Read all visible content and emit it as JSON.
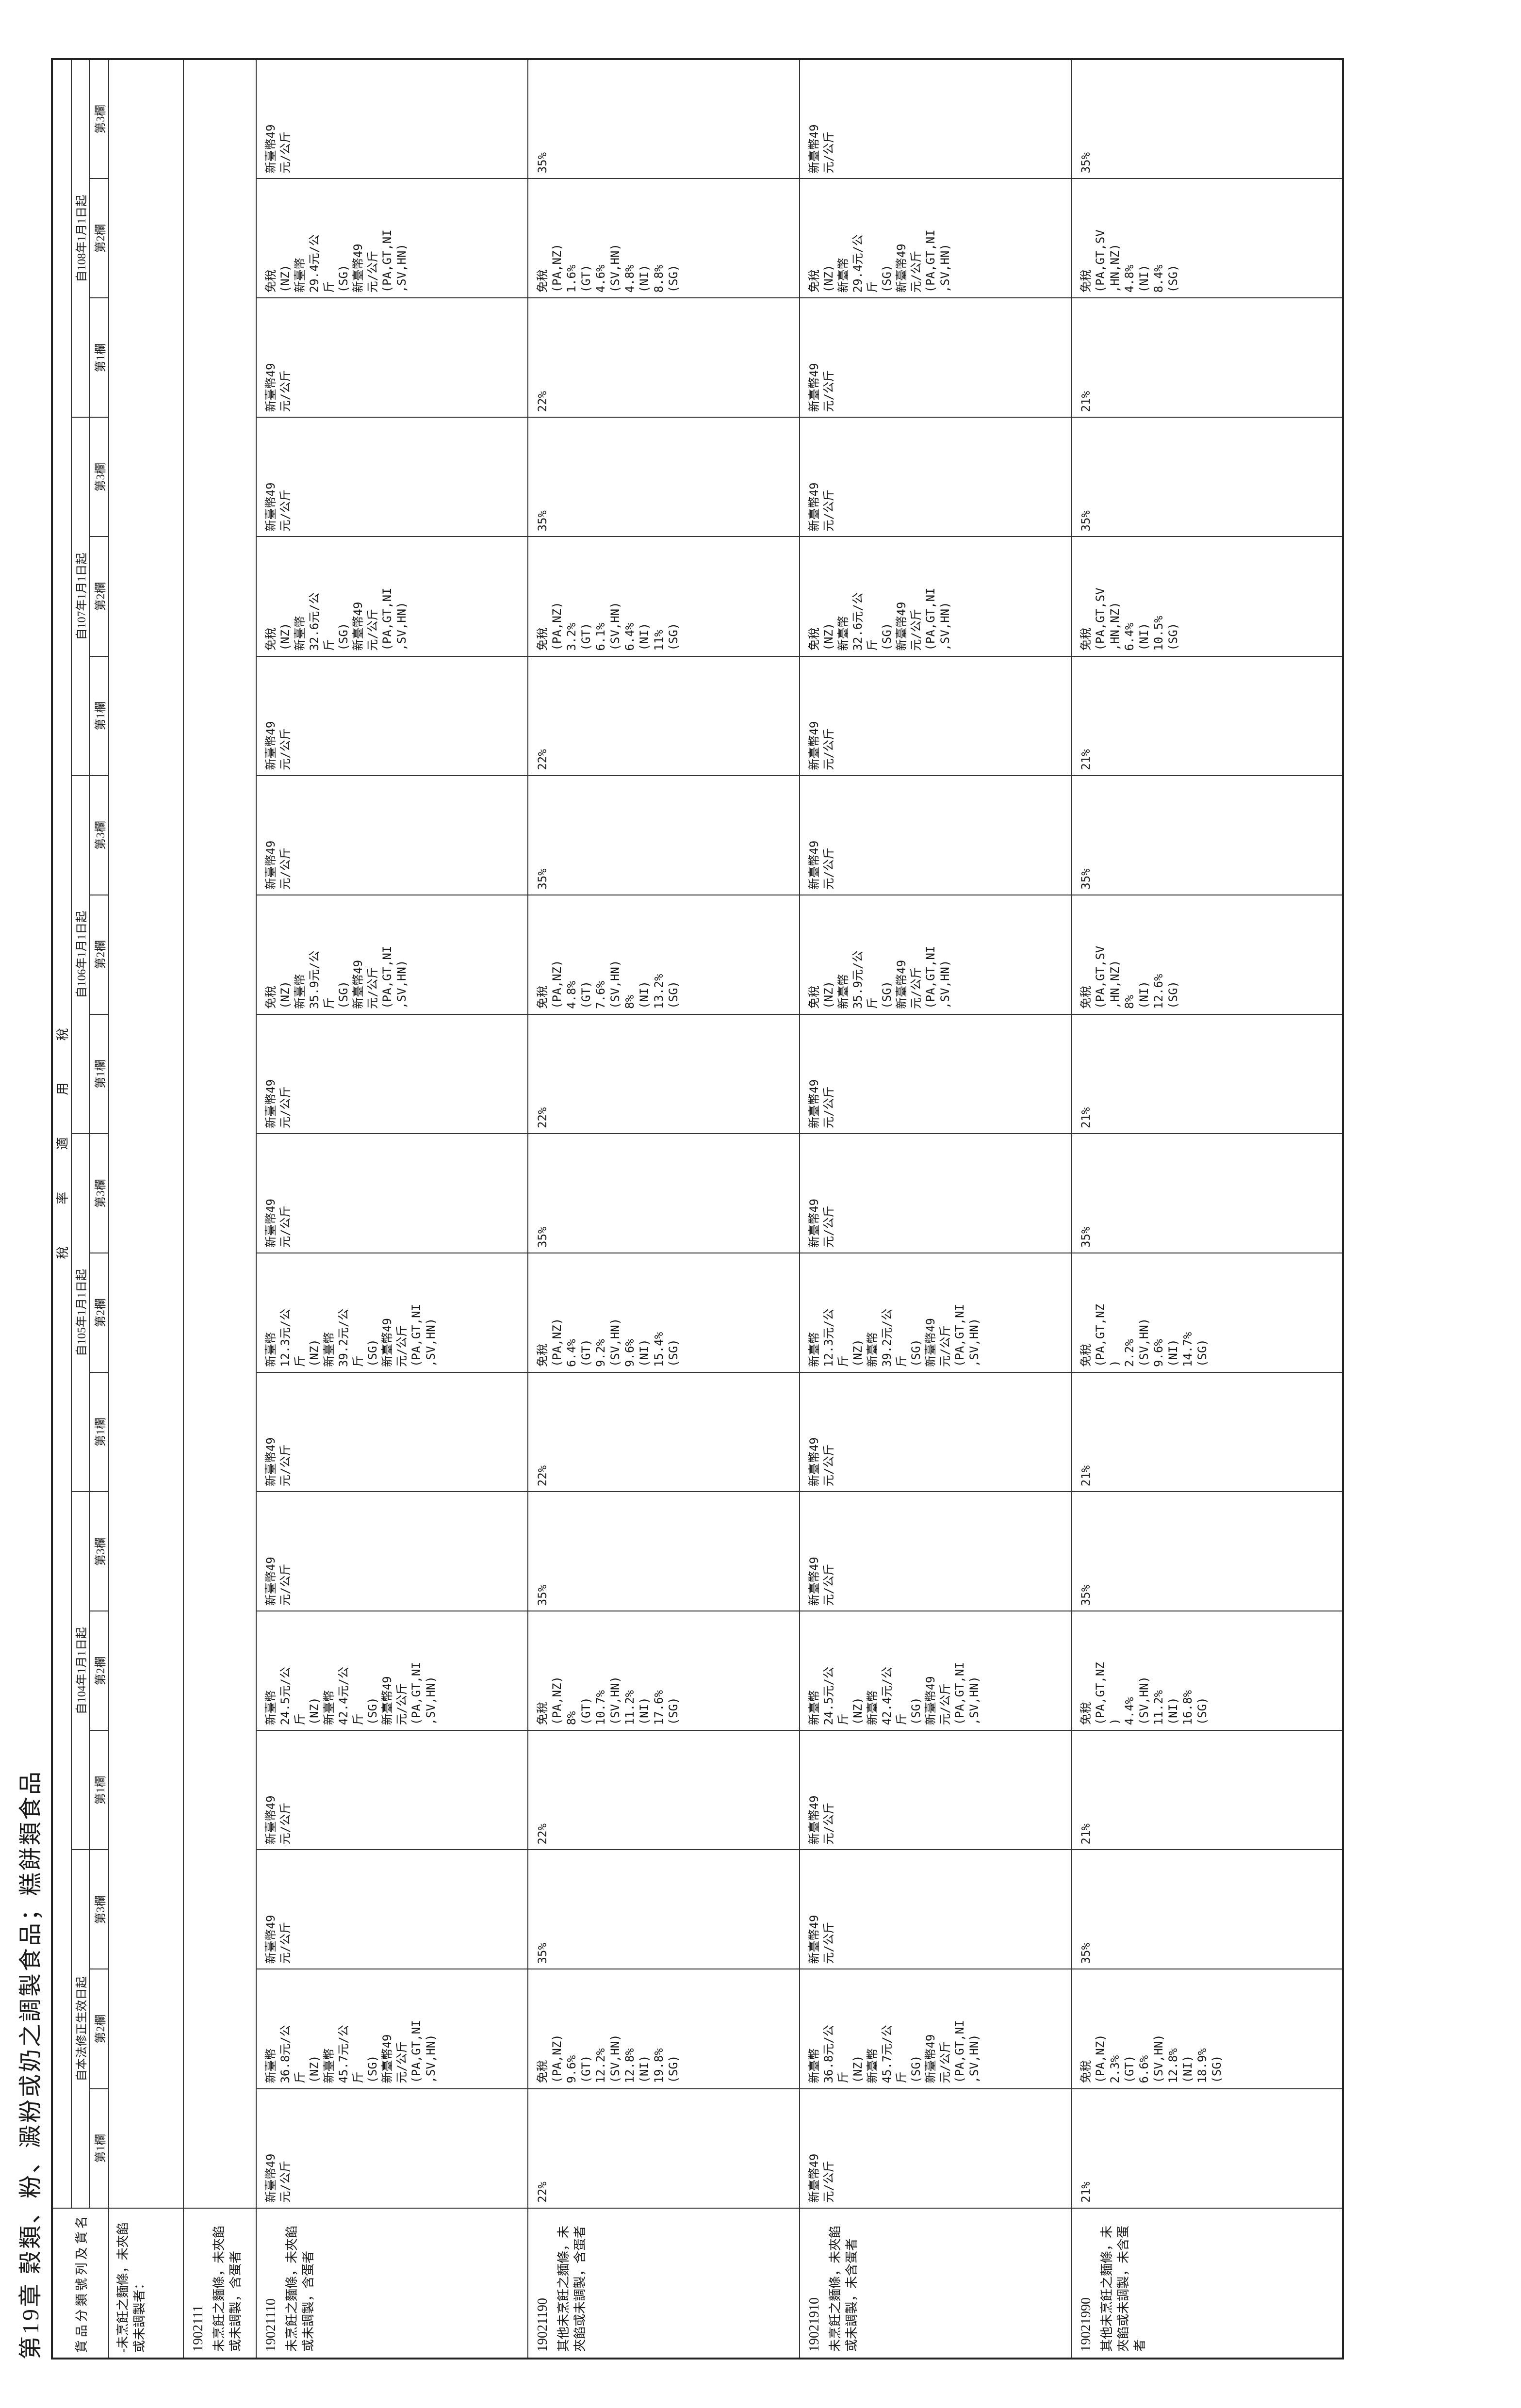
{
  "title": "第19章 穀類、粉、澱粉或奶之調製食品；糕餅類食品",
  "header": {
    "col_label": "貨品分類號列及貨名",
    "rate_label": "稅",
    "period_groups": [
      {
        "group": "稅",
        "periods": [
          "自本法修正生效日起",
          "自104年1月1日起"
        ]
      },
      {
        "group": "率",
        "periods": [
          "自105年1月1日起",
          "自106年1月1日起"
        ]
      },
      {
        "group": "適",
        "periods": [
          "自107年1月1日起",
          "自108年1月1日起"
        ]
      },
      {
        "group": "用",
        "periods": []
      }
    ],
    "periods": [
      "自本法修正生效日起",
      "自104年1月1日起",
      "自105年1月1日起",
      "自106年1月1日起",
      "自107年1月1日起",
      "自108年1月1日起"
    ],
    "col_names": [
      "第1欄",
      "第2欄",
      "第3欄"
    ]
  },
  "intro": {
    "text": "-未烹飪之麵條，未夾餡或未調製者："
  },
  "rows": [
    {
      "code": "1902111",
      "description": "未烹飪之麵條，未夾餡或未調製，含蛋者",
      "periods": [
        {
          "c1": "",
          "c2": "",
          "c3": ""
        }
      ]
    },
    {
      "code": "19021110",
      "description": "未烹飪之麵條，未夾餡或未調製，含蛋者",
      "periods": [
        {
          "c1": "新臺幣49\n元/公斤",
          "c2": "新臺幣\n36.8元/公\n斤\n(NZ)\n新臺幣\n45.7元/公\n斤\n(SG)\n新臺幣49\n元/公斤\n(PA,GT,NI\n,SV,HN)",
          "c3": "新臺幣49\n元/公斤"
        },
        {
          "c1": "新臺幣49\n元/公斤",
          "c2": "新臺幣\n24.5元/公\n斤\n(NZ)\n新臺幣\n42.4元/公\n斤\n(SG)\n新臺幣49\n元/公斤\n(PA,GT,NI\n,SV,HN)",
          "c3": "新臺幣49\n元/公斤"
        },
        {
          "c1": "新臺幣49\n元/公斤",
          "c2": "新臺幣\n12.3元/公\n斤\n(NZ)\n新臺幣\n39.2元/公\n斤\n(SG)\n新臺幣49\n元/公斤\n(PA,GT,NI\n,SV,HN)",
          "c3": "新臺幣49\n元/公斤"
        },
        {
          "c1": "新臺幣49\n元/公斤",
          "c2": "免稅\n(NZ)\n新臺幣\n35.9元/公\n斤\n(SG)\n新臺幣49\n元/公斤\n(PA,GT,NI\n,SV,HN)",
          "c3": "新臺幣49\n元/公斤"
        },
        {
          "c1": "新臺幣49\n元/公斤",
          "c2": "免稅\n(NZ)\n新臺幣\n32.6元/公\n斤\n(SG)\n新臺幣49\n元/公斤\n(PA,GT,NI\n,SV,HN)",
          "c3": "新臺幣49\n元/公斤"
        },
        {
          "c1": "新臺幣49\n元/公斤",
          "c2": "免稅\n(NZ)\n新臺幣\n29.4元/公\n斤\n(SG)\n新臺幣49\n元/公斤\n(PA,GT,NI\n,SV,HN)",
          "c3": "新臺幣49\n元/公斤"
        }
      ]
    },
    {
      "code": "19021190",
      "description": "其他未烹飪之麵條，未夾餡或未調製，含蛋者",
      "periods": [
        {
          "c1": "22%",
          "c2": "免稅\n(PA,NZ)\n9.6%\n(GT)\n12.2%\n(SV,HN)\n12.8%\n(NI)\n19.8%\n(SG)",
          "c3": "35%"
        },
        {
          "c1": "22%",
          "c2": "免稅\n(PA,NZ)\n8%\n(GT)\n10.7%\n(SV,HN)\n11.2%\n(NI)\n17.6%\n(SG)",
          "c3": "35%"
        },
        {
          "c1": "22%",
          "c2": "免稅\n(PA,NZ)\n6.4%\n(GT)\n9.2%\n(SV,HN)\n9.6%\n(NI)\n15.4%\n(SG)",
          "c3": "35%"
        },
        {
          "c1": "22%",
          "c2": "免稅\n(PA,NZ)\n4.8%\n(GT)\n7.6%\n(SV,HN)\n8%\n(NI)\n13.2%\n(SG)",
          "c3": "35%"
        },
        {
          "c1": "22%",
          "c2": "免稅\n(PA,NZ)\n3.2%\n(GT)\n6.1%\n(SV,HN)\n6.4%\n(NI)\n11%\n(SG)",
          "c3": "35%"
        },
        {
          "c1": "22%",
          "c2": "免稅\n(PA,NZ)\n1.6%\n(GT)\n4.6%\n(SV,HN)\n4.8%\n(NI)\n8.8%\n(SG)",
          "c3": "35%"
        }
      ]
    },
    {
      "code": "19021910",
      "description": "未烹飪之麵條，未夾餡或未調製，未含蛋者",
      "periods": [
        {
          "c1": "新臺幣49\n元/公斤",
          "c2": "新臺幣\n36.8元/公\n斤\n(NZ)\n新臺幣\n45.7元/公\n斤\n(SG)\n新臺幣49\n元/公斤\n(PA,GT,NI\n,SV,HN)",
          "c3": "新臺幣49\n元/公斤"
        },
        {
          "c1": "新臺幣49\n元/公斤",
          "c2": "新臺幣\n24.5元/公\n斤\n(NZ)\n新臺幣\n42.4元/公\n斤\n(SG)\n新臺幣49\n元/公斤\n(PA,GT,NI\n,SV,HN)",
          "c3": "新臺幣49\n元/公斤"
        },
        {
          "c1": "新臺幣49\n元/公斤",
          "c2": "新臺幣\n12.3元/公\n斤\n(NZ)\n新臺幣\n39.2元/公\n斤\n(SG)\n新臺幣49\n元/公斤\n(PA,GT,NI\n,SV,HN)",
          "c3": "新臺幣49\n元/公斤"
        },
        {
          "c1": "新臺幣49\n元/公斤",
          "c2": "免稅\n(NZ)\n新臺幣\n35.9元/公\n斤\n(SG)\n新臺幣49\n元/公斤\n(PA,GT,NI\n,SV,HN)",
          "c3": "新臺幣49\n元/公斤"
        },
        {
          "c1": "新臺幣49\n元/公斤",
          "c2": "免稅\n(NZ)\n新臺幣\n32.6元/公\n斤\n(SG)\n新臺幣49\n元/公斤\n(PA,GT,NI\n,SV,HN)",
          "c3": "新臺幣49\n元/公斤"
        },
        {
          "c1": "新臺幣49\n元/公斤",
          "c2": "免稅\n(NZ)\n新臺幣\n29.4元/公\n斤\n(SG)\n新臺幣49\n元/公斤\n(PA,GT,NI\n,SV,HN)",
          "c3": "新臺幣49\n元/公斤"
        }
      ]
    },
    {
      "code": "19021990",
      "description": "其他未烹飪之麵條，未夾餡或未調製，未含蛋者",
      "periods": [
        {
          "c1": "21%",
          "c2": "免稅\n(PA,NZ)\n2.3%\n(GT)\n6.6%\n(SV,HN)\n12.8%\n(NI)\n18.9%\n(SG)",
          "c3": "35%"
        },
        {
          "c1": "21%",
          "c2": "免稅\n(PA,GT,NZ\n)\n4.4%\n(SV,HN)\n11.2%\n(NI)\n16.8%\n(SG)",
          "c3": "35%"
        },
        {
          "c1": "21%",
          "c2": "免稅\n(PA,GT,NZ\n)\n2.2%\n(SV,HN)\n9.6%\n(NI)\n14.7%\n(SG)",
          "c3": "35%"
        },
        {
          "c1": "21%",
          "c2": "免稅\n(PA,GT,SV\n,HN,NZ)\n8%\n(NI)\n12.6%\n(SG)",
          "c3": "35%"
        },
        {
          "c1": "21%",
          "c2": "免稅\n(PA,GT,SV\n,HN,NZ)\n6.4%\n(NI)\n10.5%\n(SG)",
          "c3": "35%"
        },
        {
          "c1": "21%",
          "c2": "免稅\n(PA,GT,SV\n,HN,NZ)\n4.8%\n(NI)\n8.4%\n(SG)",
          "c3": "35%"
        }
      ]
    }
  ]
}
